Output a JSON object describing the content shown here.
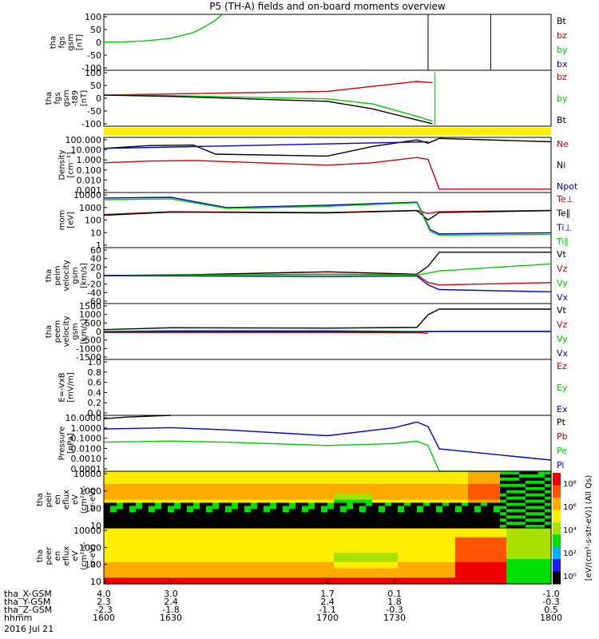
{
  "title": "P5 (TH-A) fields and on-board moments overview",
  "date": "2016 Jul 21",
  "colorbar_label": "[eV/(cm^2-s-str-eV)] (All Qs)",
  "colorbar_ticks": [
    "10^8",
    "10^6",
    "10^4",
    "10^2",
    "10^0"
  ],
  "time_axis": {
    "hhmm_label": "hhmm",
    "hhmm": [
      "1600",
      "1630",
      "1700",
      "1730",
      "1800"
    ],
    "rows": [
      {
        "label": "tha_X-GSM",
        "values": [
          "4.0",
          "3.0",
          "1.7",
          "0.1",
          "-1.0"
        ]
      },
      {
        "label": "tha_Y-GSM",
        "values": [
          "2.3",
          "2.4",
          "2.4",
          "1.8",
          "-0.3"
        ]
      },
      {
        "label": "tha_Z-GSM",
        "values": [
          "-2.3",
          "-1.8",
          "-1.1",
          "-0.3",
          "0.5"
        ]
      }
    ]
  },
  "chart_data": [
    {
      "type": "line",
      "ylabel": [
        "tha",
        "fgs",
        "gsm",
        "[nT]"
      ],
      "ylim": [
        -100,
        100
      ],
      "ticks": [
        "100",
        "50",
        "0",
        "-50",
        "-100"
      ],
      "series": [
        {
          "name": "Bt",
          "color": "#000000",
          "x": [],
          "y": []
        },
        {
          "name": "bz",
          "color": "#cc0000",
          "x": [],
          "y": []
        },
        {
          "name": "by",
          "color": "#00cc00",
          "x": [
            1600,
            1610,
            1620,
            1630,
            1640,
            1645,
            1650,
            1653
          ],
          "y": [
            0,
            2,
            6,
            15,
            35,
            55,
            80,
            100
          ]
        },
        {
          "name": "bx",
          "color": "#0000cc",
          "x": [],
          "y": []
        }
      ]
    },
    {
      "type": "line",
      "ylabel": [
        "tha",
        "fgs",
        "gsm",
        "-t89",
        "[nT]"
      ],
      "ylim": [
        -125,
        100
      ],
      "ticks": [
        "100",
        "50",
        "0",
        "-50",
        "-100"
      ],
      "series": [
        {
          "name": "bz",
          "color": "#cc0000",
          "x": [
            1600,
            1630,
            1700,
            1720,
            1740,
            1747
          ],
          "y": [
            0,
            5,
            15,
            35,
            55,
            50
          ]
        },
        {
          "name": "by",
          "color": "#00cc00",
          "x": [
            1600,
            1630,
            1700,
            1720,
            1740,
            1747
          ],
          "y": [
            0,
            -2,
            -15,
            -35,
            -85,
            -105
          ]
        },
        {
          "name": "Bt",
          "color": "#000000",
          "x": [
            1600,
            1630,
            1700,
            1720,
            1740,
            1747
          ],
          "y": [
            0,
            -5,
            -25,
            -55,
            -100,
            -115
          ]
        }
      ]
    },
    {
      "type": "line",
      "ylabel": [
        "Density",
        "[cm^-3]"
      ],
      "log": true,
      "ylim": [
        0.001,
        100
      ],
      "ticks": [
        "100.000",
        "10.000",
        "1.000",
        "0.100",
        "0.010",
        "0.001"
      ],
      "series": [
        {
          "name": "Ne",
          "color": "#cc0000",
          "x": [
            1600,
            1620,
            1640,
            1700,
            1720,
            1740,
            1745,
            1750,
            1800
          ],
          "y": [
            0.5,
            0.7,
            0.8,
            0.3,
            0.5,
            1.5,
            1.0,
            0.002,
            0.002
          ]
        },
        {
          "name": "Ni",
          "color": "#000000",
          "x": [
            1600,
            1620,
            1640,
            1650,
            1700,
            1720,
            1740,
            1745,
            1750,
            1800
          ],
          "y": [
            10,
            18,
            20,
            3,
            2,
            15,
            60,
            30,
            80,
            40
          ]
        },
        {
          "name": "Npot",
          "color": "#0000cc",
          "x": [
            1600,
            1745
          ],
          "y": [
            10,
            40
          ]
        }
      ]
    },
    {
      "type": "line",
      "ylabel": [
        "mom",
        "[eV]"
      ],
      "log": true,
      "ylim": [
        1,
        10000
      ],
      "ticks": [
        "10000",
        "1000",
        "100",
        "10",
        "1"
      ],
      "series": [
        {
          "name": "Te⊥",
          "color": "#cc0000",
          "x": [
            1600,
            1630,
            1700,
            1740,
            1745,
            1750,
            1800
          ],
          "y": [
            250,
            400,
            350,
            500,
            300,
            400,
            500
          ]
        },
        {
          "name": "Te∥",
          "color": "#000000",
          "x": [
            1600,
            1630,
            1700,
            1740,
            1745,
            1750,
            1800
          ],
          "y": [
            220,
            380,
            330,
            480,
            100,
            350,
            480
          ]
        },
        {
          "name": "Ti⊥",
          "color": "#0000cc",
          "x": [
            1600,
            1630,
            1655,
            1700,
            1740,
            1746,
            1750,
            1800
          ],
          "y": [
            4000,
            4500,
            800,
            1200,
            2000,
            20,
            10,
            12
          ]
        },
        {
          "name": "Ti∥",
          "color": "#00cc00",
          "x": [
            1600,
            1630,
            1655,
            1700,
            1740,
            1746,
            1750,
            1800
          ],
          "y": [
            3000,
            3500,
            700,
            1000,
            1800,
            15,
            8,
            9
          ]
        }
      ]
    },
    {
      "type": "line",
      "ylabel": [
        "tha",
        "peim",
        "velocity",
        "gsm",
        "[km/s]"
      ],
      "ylim": [
        -60,
        60
      ],
      "ticks": [
        "60",
        "40",
        "20",
        "0",
        "-20",
        "-40",
        "-60"
      ],
      "series": [
        {
          "name": "Vt",
          "color": "#000000",
          "x": [
            1600,
            1640,
            1700,
            1740,
            1745,
            1750,
            1800
          ],
          "y": [
            0,
            2,
            8,
            3,
            20,
            50,
            50
          ]
        },
        {
          "name": "Vz",
          "color": "#cc0000",
          "x": [
            1600,
            1640,
            1700,
            1740,
            1745,
            1750,
            1800
          ],
          "y": [
            0,
            1,
            3,
            2,
            -15,
            -20,
            -15
          ]
        },
        {
          "name": "Vy",
          "color": "#00cc00",
          "x": [
            1600,
            1640,
            1700,
            1740,
            1745,
            1750,
            1800
          ],
          "y": [
            0,
            1,
            2,
            1,
            5,
            10,
            25
          ]
        },
        {
          "name": "Vx",
          "color": "#0000cc",
          "x": [
            1600,
            1640,
            1700,
            1740,
            1745,
            1750,
            1800
          ],
          "y": [
            0,
            -1,
            -2,
            -1,
            -20,
            -30,
            -35
          ]
        }
      ]
    },
    {
      "type": "line",
      "ylabel": [
        "tha",
        "peem",
        "velocity",
        "gsm",
        "[km/s]"
      ],
      "ylim": [
        -1500,
        1500
      ],
      "ticks": [
        "1500",
        "1000",
        "500",
        "0",
        "-500",
        "-1000",
        "-1500"
      ],
      "series": [
        {
          "name": "Vt",
          "color": "#000000",
          "x": [
            1600,
            1630,
            1700,
            1740,
            1745,
            1750,
            1800
          ],
          "y": [
            100,
            200,
            180,
            220,
            900,
            1200,
            1200
          ]
        },
        {
          "name": "Vz",
          "color": "#cc0000",
          "x": [
            1600,
            1630,
            1700,
            1740,
            1745
          ],
          "y": [
            -50,
            -50,
            -50,
            -60,
            -100
          ]
        },
        {
          "name": "Vy",
          "color": "#00cc00",
          "x": [
            1600,
            1630,
            1700,
            1740,
            1745,
            1800
          ],
          "y": [
            0,
            50,
            50,
            0,
            0,
            0
          ]
        },
        {
          "name": "Vx",
          "color": "#0000cc",
          "x": [
            1600,
            1630,
            1700,
            1740,
            1745,
            1800
          ],
          "y": [
            -20,
            0,
            0,
            -20,
            0,
            0
          ]
        }
      ]
    },
    {
      "type": "line",
      "ylabel": [
        "E=-VxB",
        "[mV/m]"
      ],
      "ylim": [
        0,
        1
      ],
      "ticks": [
        "1.0",
        "0.8",
        "0.6",
        "0.4",
        "0.2",
        "0.0"
      ],
      "series": [
        {
          "name": "Ez",
          "color": "#cc0000",
          "x": [],
          "y": []
        },
        {
          "name": "Ey",
          "color": "#00cc00",
          "x": [],
          "y": []
        },
        {
          "name": "Ex",
          "color": "#0000cc",
          "x": [],
          "y": []
        }
      ]
    },
    {
      "type": "line",
      "ylabel": [
        "Pressure",
        "[nPa]"
      ],
      "log": true,
      "ylim": [
        0.0001,
        10
      ],
      "ticks": [
        "10.0000",
        "1.0000",
        "0.1000",
        "0.0100",
        "0.0010",
        "0.0001"
      ],
      "series": [
        {
          "name": "Pt",
          "color": "#000000",
          "x": [
            1600,
            1610,
            1625,
            1630
          ],
          "y": [
            5,
            7,
            9,
            10
          ]
        },
        {
          "name": "Pb",
          "color": "#cc0000",
          "x": [],
          "y": []
        },
        {
          "name": "Pe",
          "color": "#00cc00",
          "x": [
            1600,
            1630,
            1655,
            1700,
            1730,
            1740,
            1745,
            1750,
            1800
          ],
          "y": [
            0.04,
            0.05,
            0.04,
            0.02,
            0.03,
            0.05,
            0.02,
            0.0001,
            0.0001
          ]
        },
        {
          "name": "Pi",
          "color": "#0000cc",
          "x": [
            1600,
            1630,
            1655,
            1700,
            1730,
            1740,
            1745,
            1750,
            1800
          ],
          "y": [
            0.6,
            0.8,
            0.5,
            0.15,
            0.8,
            2.5,
            1.0,
            0.01,
            0.001
          ]
        }
      ]
    },
    {
      "type": "heatmap",
      "ylabel": [
        "tha",
        "peir",
        "en",
        "eflux",
        "eV",
        "(cm^2-s-",
        "sr-eV)"
      ],
      "log": true,
      "ylim": [
        5,
        30000
      ],
      "ticks": [
        "10000",
        "1000",
        "100",
        "10"
      ]
    },
    {
      "type": "heatmap",
      "ylabel": [
        "tha",
        "peer",
        "en",
        "eflux",
        "eV",
        "(cm^2-s-",
        "sr-eV)"
      ],
      "log": true,
      "ylim": [
        5,
        30000
      ],
      "ticks": [
        "10000",
        "1000",
        "100",
        "10"
      ]
    }
  ]
}
